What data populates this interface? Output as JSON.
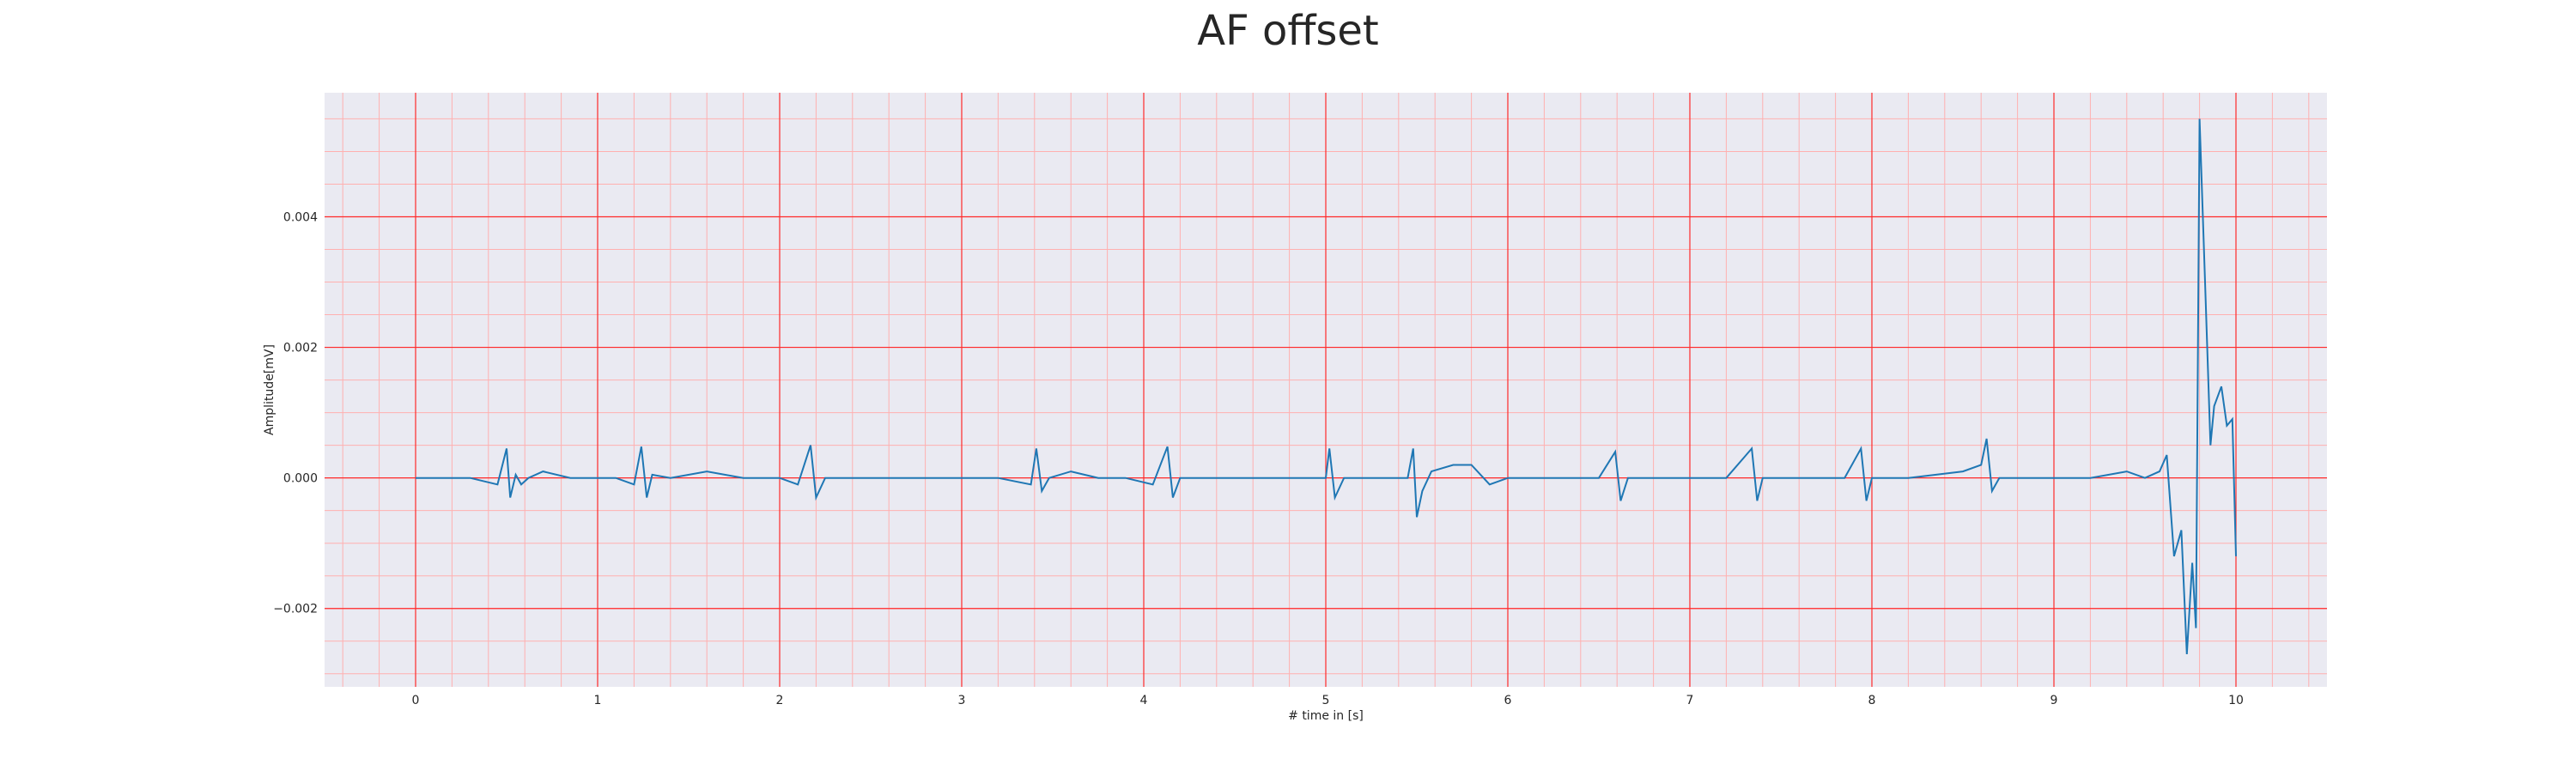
{
  "chart_data": {
    "type": "line",
    "title": "AF offset",
    "xlabel": "# time in [s]",
    "ylabel": "Amplitude[mV]",
    "xlim": [
      -0.5,
      10.5
    ],
    "ylim": [
      -0.0032,
      0.0059
    ],
    "x_ticks": [
      0,
      1,
      2,
      3,
      4,
      5,
      6,
      7,
      8,
      9,
      10
    ],
    "x_tick_labels": [
      "0",
      "1",
      "2",
      "3",
      "4",
      "5",
      "6",
      "7",
      "8",
      "9",
      "10"
    ],
    "y_ticks": [
      -0.002,
      0.0,
      0.002,
      0.004
    ],
    "y_tick_labels": [
      "−0.002",
      "0.000",
      "0.002",
      "0.004"
    ],
    "grid": "major red, minor light red",
    "colors": {
      "background": "#eaeaf2",
      "major_grid": "#ff2a2a",
      "minor_grid": "#ffb0b0",
      "line": "#1f77b4"
    },
    "beats": [
      0.52,
      1.24,
      2.17,
      3.41,
      4.13,
      5.02,
      5.48,
      6.59,
      7.34,
      7.94,
      8.63
    ],
    "series": [
      {
        "x": [
          0.0,
          0.3,
          0.45,
          0.5,
          0.52,
          0.55,
          0.58,
          0.62,
          0.7,
          0.85,
          1.0,
          1.1,
          1.2,
          1.24,
          1.27,
          1.3,
          1.4,
          1.6,
          1.8,
          2.0,
          2.1,
          2.17,
          2.2,
          2.25,
          2.35,
          2.6,
          2.9,
          3.2,
          3.38,
          3.41,
          3.44,
          3.48,
          3.6,
          3.75,
          3.9,
          4.05,
          4.13,
          4.16,
          4.2,
          4.3,
          4.5,
          4.7,
          4.9,
          5.0,
          5.02,
          5.05,
          5.1,
          5.3,
          5.45,
          5.48,
          5.5,
          5.53,
          5.58,
          5.7,
          5.8,
          5.9,
          6.0,
          6.2,
          6.5,
          6.59,
          6.62,
          6.66,
          6.8,
          7.0,
          7.2,
          7.34,
          7.37,
          7.4,
          7.6,
          7.85,
          7.94,
          7.97,
          8.0,
          8.2,
          8.5,
          8.6,
          8.63,
          8.66,
          8.7,
          8.9,
          9.2,
          9.4,
          9.5,
          9.58,
          9.62,
          9.66,
          9.7,
          9.73,
          9.76,
          9.78,
          9.8,
          9.83,
          9.86,
          9.88,
          9.92,
          9.95,
          9.98,
          10.0
        ],
        "y": [
          0.0,
          0.0,
          -0.0001,
          0.00045,
          -0.0003,
          5e-05,
          -0.0001,
          0.0,
          0.0001,
          0.0,
          0.0,
          0.0,
          -0.0001,
          0.00048,
          -0.0003,
          5e-05,
          0.0,
          0.0001,
          0.0,
          0.0,
          -0.0001,
          0.0005,
          -0.0003,
          0.0,
          0.0,
          0.0,
          0.0,
          0.0,
          -0.0001,
          0.00045,
          -0.0002,
          0.0,
          0.0001,
          0.0,
          0.0,
          -0.0001,
          0.00048,
          -0.0003,
          0.0,
          0.0,
          0.0,
          0.0,
          0.0,
          0.0,
          0.00045,
          -0.0003,
          0.0,
          0.0,
          0.0,
          0.00045,
          -0.0006,
          -0.0002,
          0.0001,
          0.0002,
          0.0002,
          -0.0001,
          0.0,
          0.0,
          0.0,
          0.0004,
          -0.00035,
          0.0,
          0.0,
          0.0,
          0.0,
          0.00045,
          -0.00035,
          0.0,
          0.0,
          0.0,
          0.00045,
          -0.00035,
          0.0,
          0.0,
          0.0001,
          0.0002,
          0.0006,
          -0.0002,
          0.0,
          0.0,
          0.0,
          0.0001,
          0.0,
          0.0001,
          0.00035,
          -0.0012,
          -0.0008,
          -0.0027,
          -0.0013,
          -0.0023,
          0.0055,
          0.003,
          0.0005,
          0.0011,
          0.0014,
          0.0008,
          0.0009,
          -0.0012
        ]
      }
    ]
  }
}
